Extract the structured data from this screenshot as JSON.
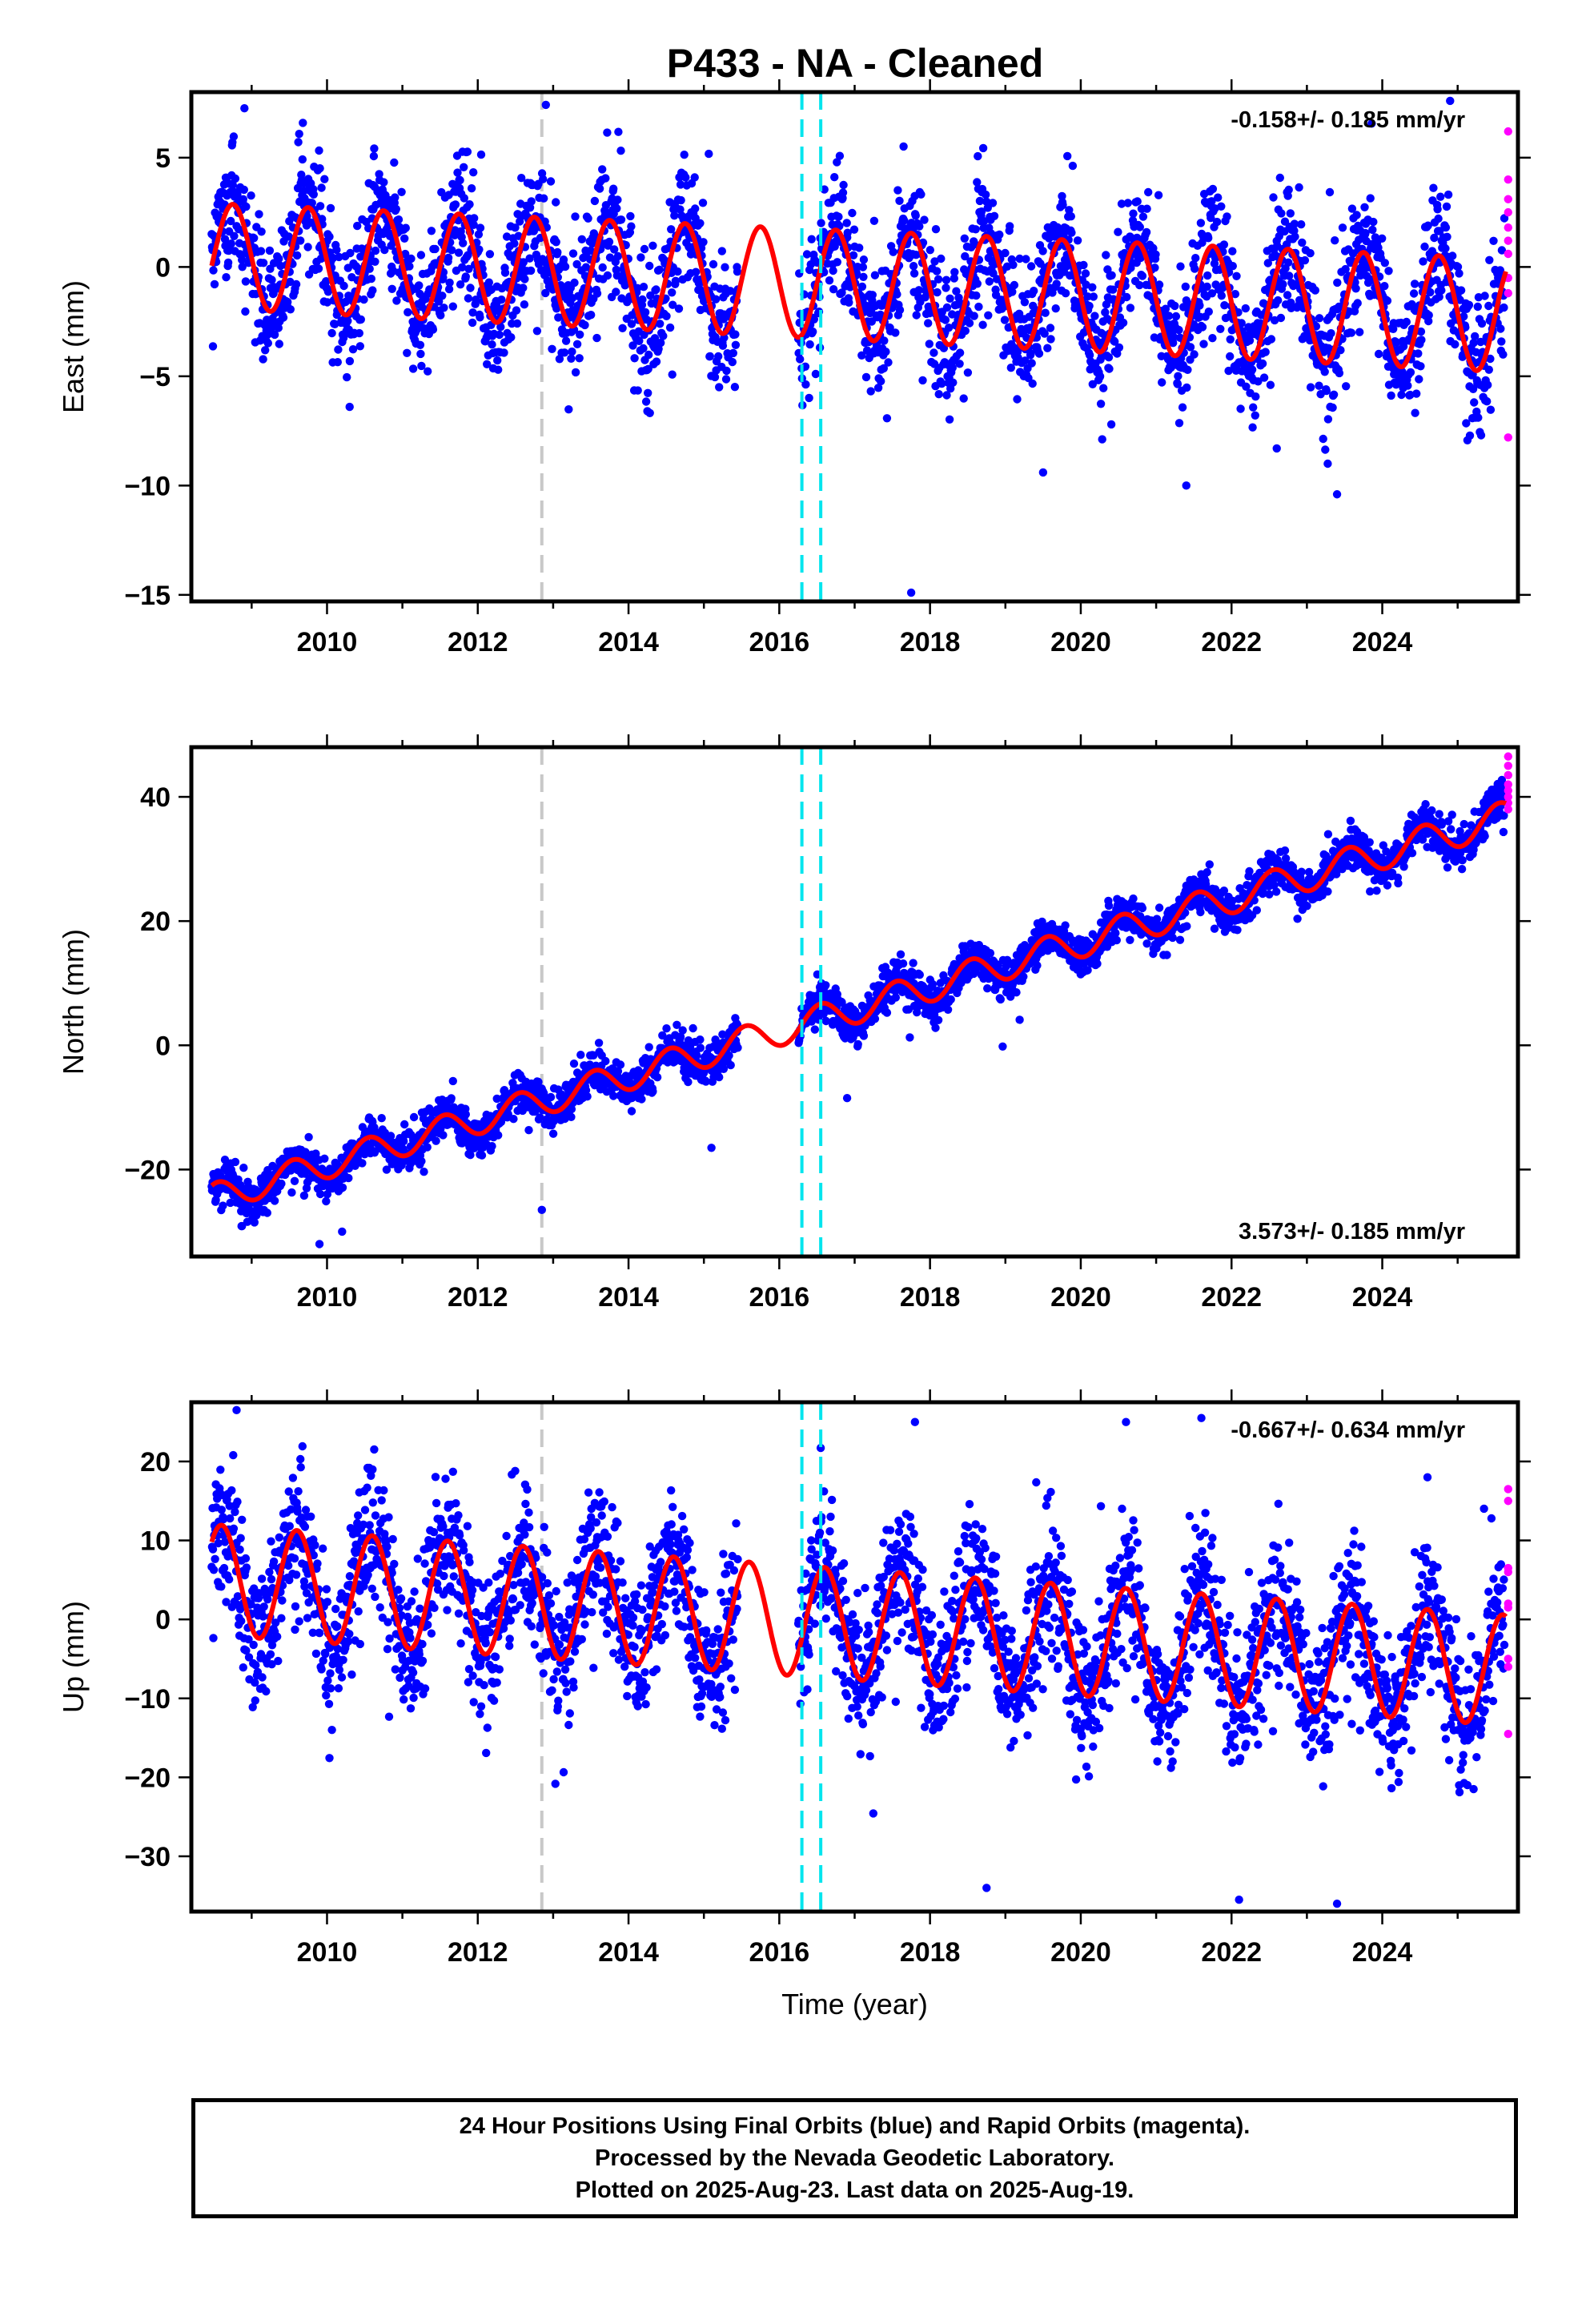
{
  "title": "P433  - NA - Cleaned",
  "colors": {
    "final_orbits": "#0000ff",
    "rapid_orbits": "#ff00ff",
    "model": "#ff0000",
    "offset_gray": "#c8c8c8",
    "offset_cyan": "#00e5ee"
  },
  "chart_data": [
    {
      "type": "scatter",
      "id": "east",
      "ylabel": "East (mm)",
      "xlabel": "",
      "xlim": [
        2008.2,
        2025.8
      ],
      "ylim": [
        -15.3,
        8.0
      ],
      "x_ticks": [
        2010,
        2012,
        2014,
        2016,
        2018,
        2020,
        2022,
        2024
      ],
      "y_ticks": [
        5,
        0,
        -5,
        -10,
        -15
      ],
      "rate": "-0.158+/- 0.185 mm/yr",
      "rate_position": "top-right",
      "model": {
        "amp_start": 2.4,
        "amp_end": 2.6,
        "offset_start": 0.5,
        "trend": -0.158,
        "peak_phase": 0.75
      },
      "gap": [
        2015.45,
        2016.25
      ],
      "vlines_gray": [
        2012.85
      ],
      "vlines_cyan": [
        2016.3,
        2016.55
      ],
      "rapid_values": [
        6.2,
        4.0,
        3.1,
        2.5,
        1.8,
        1.2,
        0.6,
        -0.5,
        -1.2,
        -7.8
      ],
      "outliers": [
        [
          2017.75,
          -14.9
        ],
        [
          2023.4,
          -10.4
        ],
        [
          2021.4,
          -10.0
        ],
        [
          2019.5,
          -9.4
        ],
        [
          2010.3,
          -6.4
        ],
        [
          2022.6,
          -8.3
        ],
        [
          2024.9,
          7.6
        ]
      ]
    },
    {
      "type": "scatter",
      "id": "north",
      "ylabel": "North (mm)",
      "xlabel": "",
      "xlim": [
        2008.2,
        2025.8
      ],
      "ylim": [
        -34.0,
        48.0
      ],
      "x_ticks": [
        2010,
        2012,
        2014,
        2016,
        2018,
        2020,
        2022,
        2024
      ],
      "y_ticks": [
        40,
        20,
        0,
        -20
      ],
      "rate": "3.573+/- 0.185 mm/yr",
      "rate_position": "bottom-right",
      "model": {
        "amp_start": 2.3,
        "amp_end": 2.6,
        "offset_start": -24.5,
        "trend": 3.573,
        "peak_phase": 0.55
      },
      "gap": [
        2015.45,
        2016.25
      ],
      "vlines_gray": [
        2012.85
      ],
      "vlines_cyan": [
        2016.3,
        2016.55
      ],
      "rapid_values": [
        46.5,
        45.0,
        43.5,
        42.0,
        41.0,
        40.0,
        39.0,
        38.0
      ],
      "outliers": [
        [
          2009.9,
          -32.0
        ],
        [
          2012.85,
          -26.5
        ],
        [
          2016.9,
          -8.5
        ],
        [
          2010.2,
          -30.0
        ],
        [
          2015.1,
          -16.5
        ]
      ]
    },
    {
      "type": "scatter",
      "id": "up",
      "ylabel": "Up (mm)",
      "xlabel": "Time (year)",
      "xlim": [
        2008.2,
        2025.8
      ],
      "ylim": [
        -37.0,
        27.5
      ],
      "x_ticks": [
        2010,
        2012,
        2014,
        2016,
        2018,
        2020,
        2022,
        2024
      ],
      "y_ticks": [
        20,
        10,
        0,
        -10,
        -20,
        -30
      ],
      "rate": "-0.667+/- 0.634 mm/yr",
      "rate_position": "top-right",
      "model": {
        "amp_start": 7.0,
        "amp_end": 7.0,
        "offset_start": 5.0,
        "trend": -0.667,
        "peak_phase": 0.6
      },
      "gap": [
        2015.45,
        2016.25
      ],
      "vlines_gray": [
        2012.85
      ],
      "vlines_cyan": [
        2016.3,
        2016.55
      ],
      "rapid_values": [
        16.5,
        15.0,
        6.5,
        6.0,
        2.0,
        1.5,
        -5.0,
        -6.0,
        -14.5
      ],
      "outliers": [
        [
          2018.75,
          -34.0
        ],
        [
          2022.1,
          -35.5
        ],
        [
          2023.4,
          -36.0
        ],
        [
          2008.8,
          26.5
        ],
        [
          2017.8,
          25.0
        ],
        [
          2020.6,
          25.0
        ],
        [
          2021.6,
          25.5
        ],
        [
          2024.6,
          18.0
        ]
      ]
    }
  ],
  "footer": {
    "line1": "24 Hour Positions Using Final Orbits (blue) and Rapid Orbits (magenta).",
    "line2": "Processed by the Nevada Geodetic Laboratory.",
    "line3": "Plotted on 2025-Aug-23. Last data on 2025-Aug-19."
  }
}
